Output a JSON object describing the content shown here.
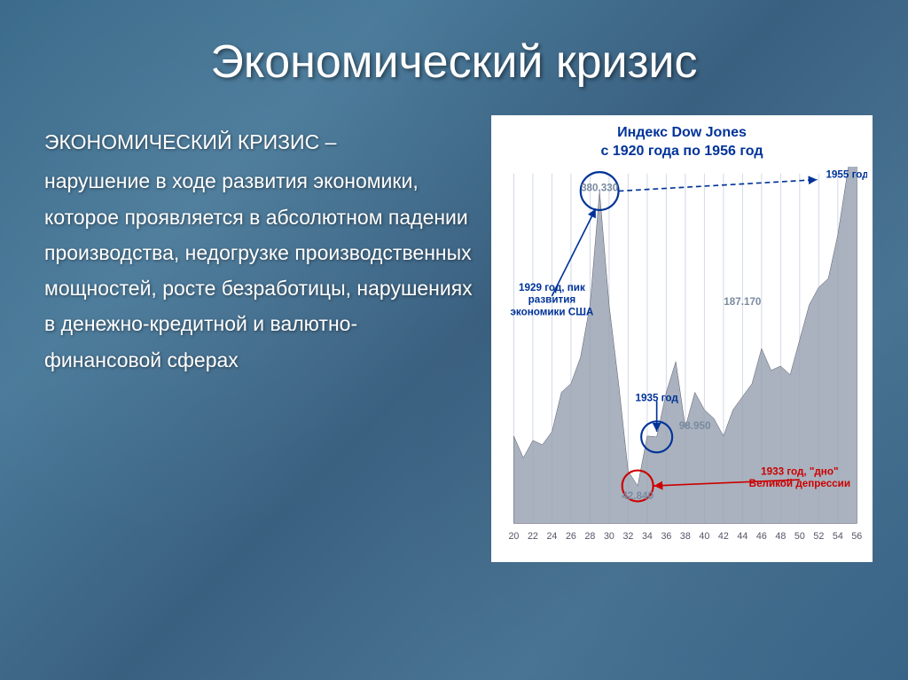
{
  "title": "Экономический кризис",
  "definition_head": "ЭКОНОМИЧЕСКИЙ КРИЗИС –",
  "definition_body": "нарушение в ходе развития экономики, которое проявляется в абсолютном падении производства, недогрузке производственных мощностей, росте безработицы, нарушениях в денежно-кредитной и валютно-финансовой сферах",
  "chart": {
    "title_l1": "Индекс Dow Jones",
    "title_l2": "с 1920 года по 1956 год",
    "type": "area",
    "x_ticks": [
      "20",
      "22",
      "24",
      "26",
      "28",
      "30",
      "32",
      "34",
      "36",
      "38",
      "40",
      "42",
      "44",
      "46",
      "48",
      "50",
      "52",
      "54",
      "56"
    ],
    "ylim": [
      0,
      400
    ],
    "data_points": [
      [
        1920,
        100
      ],
      [
        1921,
        75
      ],
      [
        1922,
        95
      ],
      [
        1923,
        90
      ],
      [
        1924,
        105
      ],
      [
        1925,
        150
      ],
      [
        1926,
        160
      ],
      [
        1927,
        190
      ],
      [
        1928,
        250
      ],
      [
        1929,
        380
      ],
      [
        1930,
        250
      ],
      [
        1931,
        160
      ],
      [
        1932,
        60
      ],
      [
        1933,
        43
      ],
      [
        1934,
        100
      ],
      [
        1935,
        99
      ],
      [
        1936,
        150
      ],
      [
        1937,
        185
      ],
      [
        1938,
        110
      ],
      [
        1939,
        150
      ],
      [
        1940,
        130
      ],
      [
        1941,
        120
      ],
      [
        1942,
        100
      ],
      [
        1943,
        130
      ],
      [
        1944,
        145
      ],
      [
        1945,
        160
      ],
      [
        1946,
        200
      ],
      [
        1947,
        175
      ],
      [
        1948,
        180
      ],
      [
        1949,
        170
      ],
      [
        1950,
        210
      ],
      [
        1951,
        250
      ],
      [
        1952,
        270
      ],
      [
        1953,
        280
      ],
      [
        1954,
        330
      ],
      [
        1955,
        400
      ],
      [
        1956,
        470
      ]
    ],
    "area_color": "#9aa5b3",
    "grid_color": "#d0d8e4",
    "background_color": "#ffffff",
    "annotations": [
      {
        "label": "380.330",
        "year": 1929,
        "value": 380,
        "circle": true,
        "circle_color": "#003399",
        "text_color": "#7a8aa0"
      },
      {
        "label": "1955 год",
        "year": 1955,
        "value": 395,
        "arrow_from": [
          1929,
          380
        ],
        "text_color": "#003399"
      },
      {
        "label": "1929 год, пик\nразвития\nэкономики США",
        "year": 1924,
        "value": 260,
        "arrow_to": [
          1928.6,
          360
        ],
        "text_color": "#003399"
      },
      {
        "label": "187.170",
        "year": 1944,
        "value": 250,
        "text_color": "#7a8aa0"
      },
      {
        "label": "1935 год",
        "year": 1935,
        "value": 140,
        "arrow_to": [
          1935,
          105
        ],
        "text_color": "#003399"
      },
      {
        "label": "98.950",
        "year": 1939,
        "value": 108,
        "circle_at": [
          1935,
          99
        ],
        "circle_color": "#003399",
        "text_color": "#7a8aa0"
      },
      {
        "label": "1933 год, \"дно\"\nВеликой депрессии",
        "year": 1950,
        "value": 50,
        "arrow_to": [
          1934.7,
          43
        ],
        "text_color": "#cc0000"
      },
      {
        "label": "42.840",
        "year": 1933,
        "value": 28,
        "circle_at": [
          1933,
          43
        ],
        "circle_color": "#cc0000",
        "text_color": "#7a8aa0"
      }
    ]
  }
}
